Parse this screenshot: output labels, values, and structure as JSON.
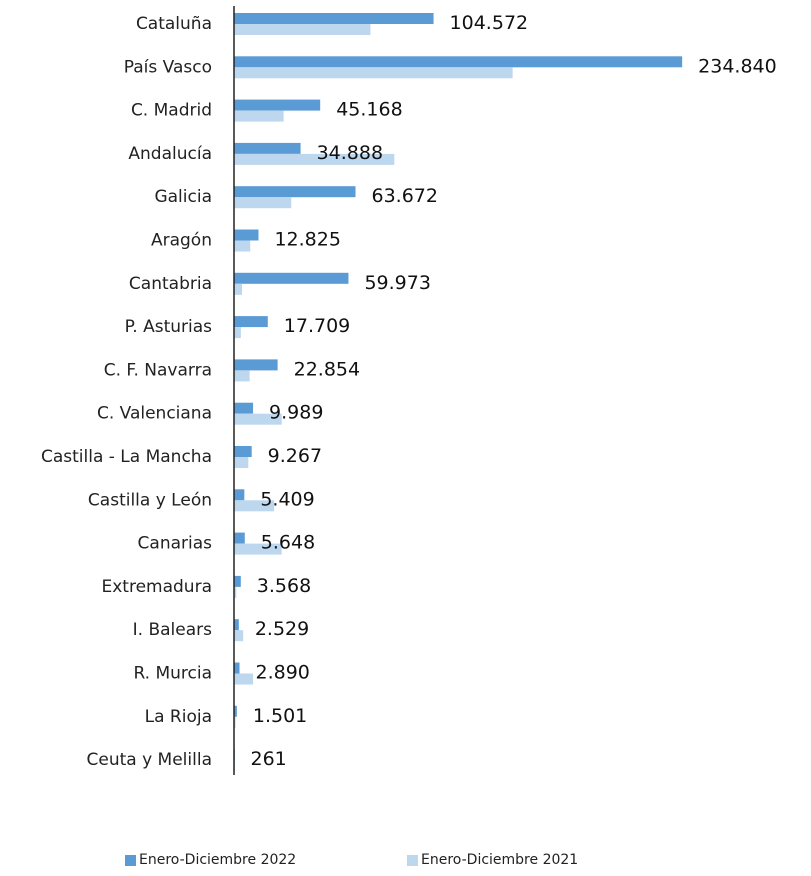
{
  "chart_data": {
    "type": "bar",
    "orientation": "horizontal",
    "categories": [
      "Cataluña",
      "País Vasco",
      "C. Madrid",
      "Andalucía",
      "Galicia",
      "Aragón",
      "Cantabria",
      "P. Asturias",
      "C. F. Navarra",
      "C. Valenciana",
      "Castilla - La Mancha",
      "Castilla y León",
      "Canarias",
      "Extremadura",
      "I. Balears",
      "R. Murcia",
      "La Rioja",
      "Ceuta y Melilla"
    ],
    "value_labels": [
      "104.572",
      "234.840",
      "45.168",
      "34.888",
      "63.672",
      "12.825",
      "59.973",
      "17.709",
      "22.854",
      "9.989",
      "9.267",
      "5.409",
      "5.648",
      "3.568",
      "2.529",
      "2.890",
      "1.501",
      "261"
    ],
    "series": [
      {
        "name": "Enero-Diciembre 2022",
        "color": "#5b9bd5",
        "values": [
          104572,
          234840,
          45168,
          34888,
          63672,
          12825,
          59973,
          17709,
          22854,
          9989,
          9267,
          5409,
          5648,
          3568,
          2529,
          2890,
          1501,
          261
        ]
      },
      {
        "name": "Enero-Diciembre 2021",
        "color": "#bdd7ee",
        "values": [
          71500,
          146000,
          26000,
          84000,
          30000,
          8500,
          4200,
          3600,
          8200,
          25000,
          7500,
          21000,
          25000,
          1200,
          4800,
          10000,
          800,
          400
        ]
      }
    ],
    "xlim": [
      0,
      240000
    ],
    "grid": false,
    "legend_position": "bottom"
  }
}
